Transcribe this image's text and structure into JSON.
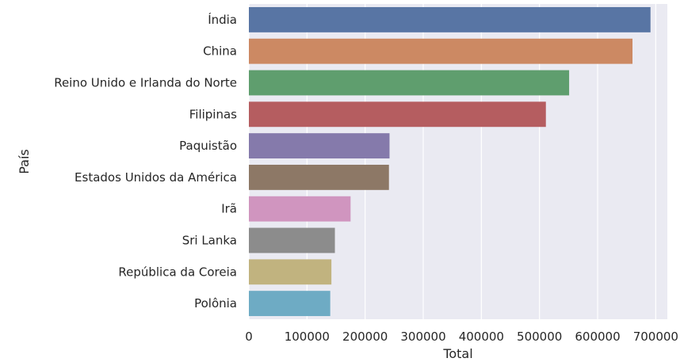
{
  "chart_data": {
    "type": "bar",
    "orientation": "horizontal",
    "style": "seaborn-darkgrid",
    "xlabel": "Total",
    "ylabel": "País",
    "xlim": [
      0,
      720000
    ],
    "xticks": [
      0,
      100000,
      200000,
      300000,
      400000,
      500000,
      600000,
      700000
    ],
    "xtick_labels": [
      "0",
      "100000",
      "200000",
      "300000",
      "400000",
      "500000",
      "600000",
      "700000"
    ],
    "grid": true,
    "legend": "none",
    "categories": [
      "Índia",
      "China",
      "Reino Unido e Irlanda do Norte",
      "Filipinas",
      "Paquistão",
      "Estados Unidos da América",
      "Irã",
      "Sri Lanka",
      "República da Coreia",
      "Polônia"
    ],
    "values": [
      691000,
      660000,
      551000,
      511000,
      242000,
      241000,
      175000,
      148000,
      142000,
      140000
    ],
    "colors": [
      "#5875a4",
      "#cc8963",
      "#5f9e6e",
      "#b55d60",
      "#857aab",
      "#8d7866",
      "#d095bf",
      "#8c8c8c",
      "#c1b37f",
      "#6eabc4"
    ],
    "background_color": "#eaeaf2",
    "grid_color": "#ffffff"
  }
}
